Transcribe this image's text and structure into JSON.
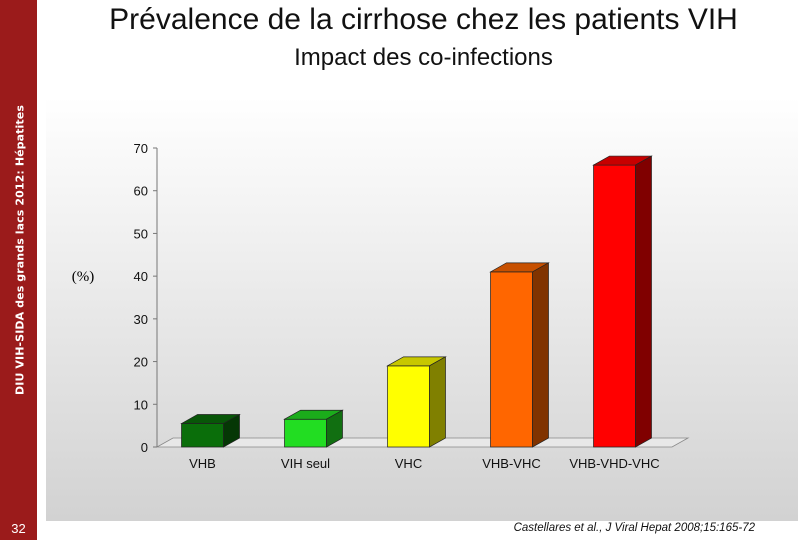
{
  "sidebar": {
    "vertical_text": "DIU VIH-SIDA des grands lacs 2012: Hépatites",
    "slide_number": "32",
    "color": "#9b1b1b"
  },
  "header": {
    "title": "Prévalence de la cirrhose chez les patients VIH",
    "subtitle": "Impact des co-infections"
  },
  "footer": {
    "citation": "Castellares et al., J Viral Hepat 2008;15:165-72"
  },
  "chart_data": {
    "type": "bar",
    "title": "",
    "xlabel": "",
    "ylabel": "(%)",
    "categories": [
      "VHB",
      "VIH seul",
      "VHC",
      "VHB-VHC",
      "VHB-VHD-VHC"
    ],
    "values": [
      5.5,
      6.5,
      19,
      41,
      66
    ],
    "colors": [
      "#0a6e0a",
      "#22dd22",
      "#ffff00",
      "#ff6600",
      "#ff0000"
    ],
    "yticks": [
      0,
      10,
      20,
      30,
      40,
      50,
      60,
      70
    ],
    "ylim": [
      0,
      70
    ],
    "style": "3d",
    "grid": false
  }
}
